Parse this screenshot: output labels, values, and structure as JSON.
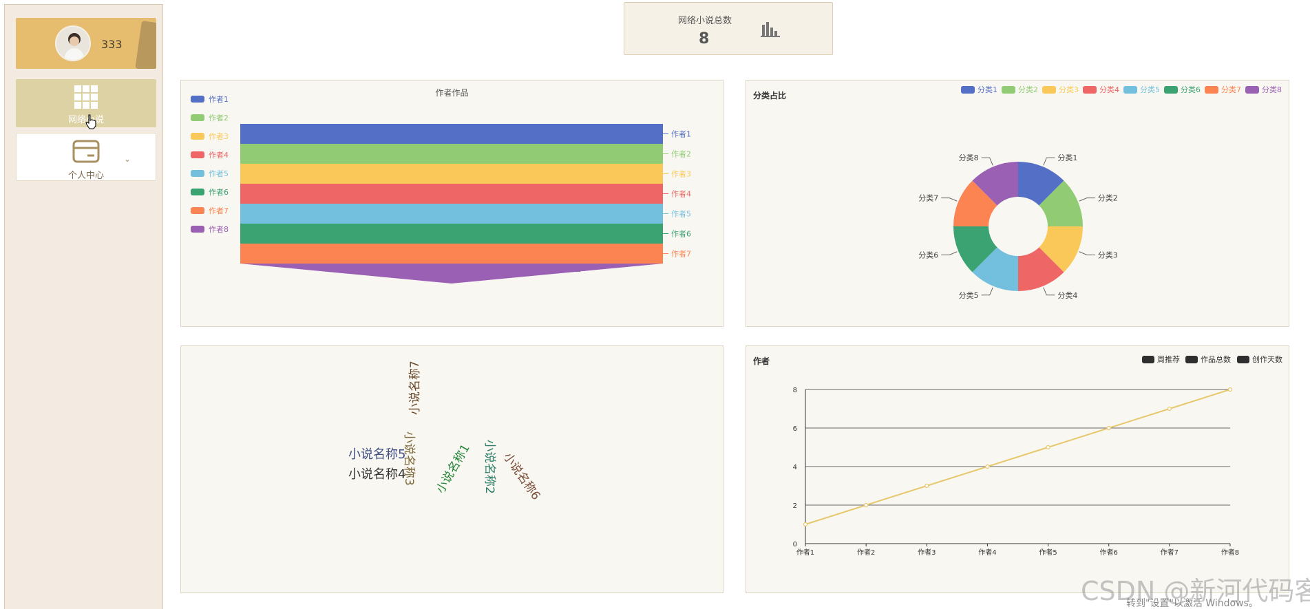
{
  "sidebar": {
    "user": {
      "name": "333"
    },
    "items": [
      {
        "label": "网络小说"
      },
      {
        "label": "个人中心"
      }
    ]
  },
  "stat": {
    "title": "网络小说总数",
    "value": "8"
  },
  "charts": [
    {
      "type": "funnel",
      "title": "作者作品",
      "categories": [
        "作者1",
        "作者2",
        "作者3",
        "作者4",
        "作者5",
        "作者6",
        "作者7",
        "作者8"
      ],
      "values": [
        8,
        8,
        8,
        8,
        8,
        8,
        8,
        0
      ],
      "legend": [
        "作者1",
        "作者2",
        "作者3",
        "作者4",
        "作者5",
        "作者6",
        "作者7",
        "作者8"
      ],
      "colors": [
        "#5470c6",
        "#91cc75",
        "#fac858",
        "#ee6666",
        "#73c0de",
        "#3ba272",
        "#fc8452",
        "#9a60b4"
      ]
    },
    {
      "type": "pie",
      "title": "分类占比",
      "categories": [
        "分类1",
        "分类2",
        "分类3",
        "分类4",
        "分类5",
        "分类6",
        "分类7",
        "分类8"
      ],
      "values": [
        1,
        1,
        1,
        1,
        1,
        1,
        1,
        1
      ],
      "legend": [
        "分类1",
        "分类2",
        "分类3",
        "分类4",
        "分类5",
        "分类6",
        "分类7",
        "分类8"
      ],
      "colors": [
        "#5470c6",
        "#91cc75",
        "#fac858",
        "#ee6666",
        "#73c0de",
        "#3ba272",
        "#fc8452",
        "#9a60b4"
      ]
    },
    {
      "type": "wordcloud",
      "words": [
        {
          "text": "小说名称5",
          "color": "#3f4e84",
          "rotate": 0
        },
        {
          "text": "小说名称4",
          "color": "#333333",
          "rotate": 0
        },
        {
          "text": "小说名称3",
          "color": "#7f6b3c",
          "rotate": 90
        },
        {
          "text": "小说名称7",
          "color": "#6b4a2c",
          "rotate": -90
        },
        {
          "text": "小说名称1",
          "color": "#27883c",
          "rotate": -60
        },
        {
          "text": "小说名称2",
          "color": "#2d7f6a",
          "rotate": 90
        },
        {
          "text": "小说名称6",
          "color": "#7a4e3b",
          "rotate": 55
        }
      ]
    },
    {
      "type": "line",
      "title": "作者",
      "legend": [
        "周推荐",
        "作品总数",
        "创作天数"
      ],
      "categories": [
        "作者1",
        "作者2",
        "作者3",
        "作者4",
        "作者5",
        "作者6",
        "作者7",
        "作者8"
      ],
      "values": [
        1,
        2,
        3,
        4,
        5,
        6,
        7,
        8
      ],
      "ylim": [
        0,
        8
      ],
      "yticks": [
        0,
        2,
        4,
        6,
        8
      ],
      "color": "#e6c86e"
    }
  ],
  "watermark": "CSDN @新河代码客",
  "activation_note": "转到\"设置\"以激活 Windows。"
}
